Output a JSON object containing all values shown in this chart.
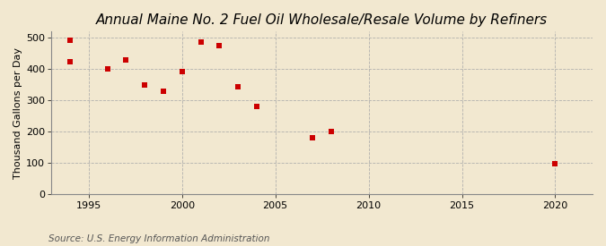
{
  "title": "Annual Maine No. 2 Fuel Oil Wholesale/Resale Volume by Refiners",
  "ylabel": "Thousand Gallons per Day",
  "source": "Source: U.S. Energy Information Administration",
  "xlim": [
    1993,
    2022
  ],
  "ylim": [
    0,
    520
  ],
  "yticks": [
    0,
    100,
    200,
    300,
    400,
    500
  ],
  "xticks": [
    1995,
    2000,
    2005,
    2010,
    2015,
    2020
  ],
  "background_color": "#f2e8d0",
  "marker_color": "#cc0000",
  "grid_color": "#aaaaaa",
  "title_fontsize": 11,
  "ylabel_fontsize": 8,
  "tick_fontsize": 8,
  "source_fontsize": 7.5,
  "data_points": [
    [
      1994,
      425
    ],
    [
      1994,
      493
    ],
    [
      1996,
      400
    ],
    [
      1997,
      430
    ],
    [
      1998,
      348
    ],
    [
      1999,
      330
    ],
    [
      2000,
      393
    ],
    [
      2001,
      487
    ],
    [
      2002,
      475
    ],
    [
      2003,
      344
    ],
    [
      2004,
      280
    ],
    [
      2007,
      180
    ],
    [
      2008,
      200
    ],
    [
      2020,
      98
    ]
  ]
}
